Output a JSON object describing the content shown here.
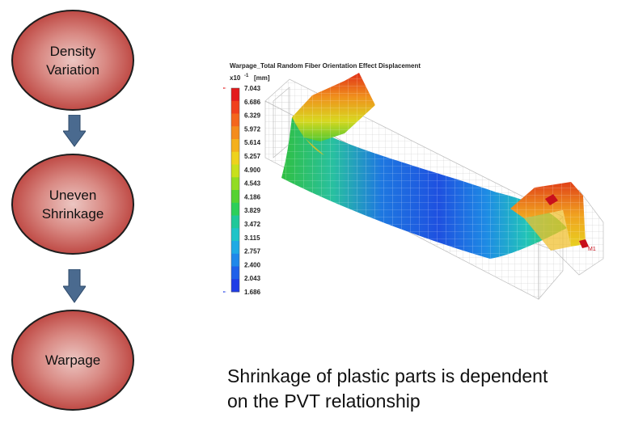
{
  "flow": {
    "nodes": [
      {
        "label": "Density\nVariation"
      },
      {
        "label": "Uneven\nShrinkage"
      },
      {
        "label": "Warpage"
      }
    ]
  },
  "plot": {
    "title": "Warpage_Total Random Fiber Orientation Effect Displacement",
    "scale_prefix": "x10",
    "scale_exp": "-1",
    "unit": "[mm]",
    "colorbar_ticks": [
      "7.043",
      "6.686",
      "6.329",
      "5.972",
      "5.614",
      "5.257",
      "4.900",
      "4.543",
      "4.186",
      "3.829",
      "3.472",
      "3.115",
      "2.757",
      "2.400",
      "2.043",
      "1.686"
    ],
    "colorbar_colors": [
      "#e31a1c",
      "#f0401c",
      "#f4661c",
      "#f48c1c",
      "#f4b01c",
      "#eed21c",
      "#c8e01c",
      "#92dc22",
      "#56d232",
      "#2ccf5a",
      "#1fc89a",
      "#1ec4c8",
      "#1eaae4",
      "#1e88ea",
      "#1e60ea",
      "#1e3ce6"
    ],
    "max_value": 7.043,
    "min_value": 1.686,
    "marker_label": "M1"
  },
  "caption": {
    "line1": "Shrinkage of plastic parts is dependent",
    "line2": "on the PVT relationship"
  }
}
